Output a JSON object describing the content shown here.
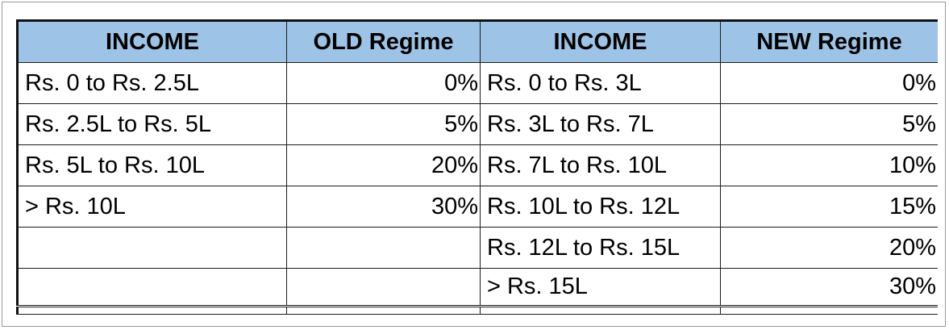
{
  "headers": [
    "INCOME",
    "OLD Regime",
    "INCOME",
    "NEW Regime"
  ],
  "rows": [
    {
      "old_income": "Rs. 0 to Rs. 2.5L",
      "old_rate": "0%",
      "new_income": "Rs. 0 to Rs. 3L",
      "new_rate": "0%"
    },
    {
      "old_income": "Rs. 2.5L to Rs. 5L",
      "old_rate": "5%",
      "new_income": "Rs. 3L to Rs. 7L",
      "new_rate": "5%"
    },
    {
      "old_income": "Rs. 5L to Rs. 10L",
      "old_rate": "20%",
      "new_income": "Rs. 7L to Rs. 10L",
      "new_rate": "10%"
    },
    {
      "old_income": "> Rs. 10L",
      "old_rate": "30%",
      "new_income": "Rs. 10L to Rs. 12L",
      "new_rate": "15%"
    },
    {
      "old_income": "",
      "old_rate": "",
      "new_income": "Rs. 12L to Rs. 15L",
      "new_rate": "20%"
    },
    {
      "old_income": "",
      "old_rate": "",
      "new_income": "> Rs. 15L",
      "new_rate": "30%"
    }
  ],
  "colors": {
    "header_bg": "#9dc3e6",
    "border": "#1c1c1c"
  }
}
